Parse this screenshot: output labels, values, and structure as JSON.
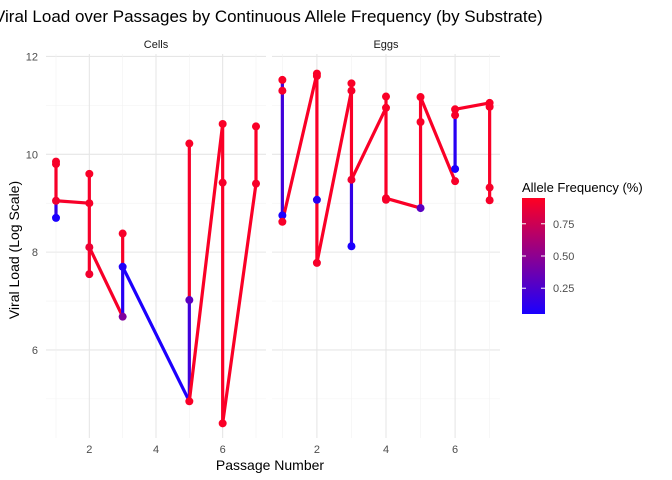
{
  "chart_data": {
    "type": "line",
    "title": "Viral Load over Passages by Continuous Allele Frequency (by Substrate)",
    "xlabel": "Passage Number",
    "ylabel": "Viral Load (Log Scale)",
    "xlim": [
      0.7,
      7.3
    ],
    "ylim": [
      4.2,
      12.05
    ],
    "x_ticks": [
      2,
      4,
      6
    ],
    "y_ticks": [
      6,
      8,
      10,
      12
    ],
    "grid": true,
    "legend": {
      "title": "Allele Frequency (%)",
      "position": "right",
      "ticks": [
        0.25,
        0.5,
        0.75
      ],
      "range": [
        0.05,
        0.95
      ],
      "low_color": "#1a00ff",
      "high_color": "#ff0022"
    },
    "panels": [
      {
        "label": "Cells",
        "points": [
          {
            "x": 1,
            "y": 9.85,
            "freq": 0.92
          },
          {
            "x": 1,
            "y": 9.8,
            "freq": 0.92
          },
          {
            "x": 1,
            "y": 9.05,
            "freq": 0.9
          },
          {
            "x": 1,
            "y": 8.7,
            "freq": 0.05
          },
          {
            "x": 2,
            "y": 9.6,
            "freq": 0.93
          },
          {
            "x": 2,
            "y": 9.0,
            "freq": 0.92
          },
          {
            "x": 2,
            "y": 8.1,
            "freq": 0.88
          },
          {
            "x": 2,
            "y": 7.55,
            "freq": 0.9
          },
          {
            "x": 3,
            "y": 8.38,
            "freq": 0.92
          },
          {
            "x": 3,
            "y": 7.7,
            "freq": 0.08
          },
          {
            "x": 3,
            "y": 6.68,
            "freq": 0.45
          },
          {
            "x": 5,
            "y": 10.22,
            "freq": 0.93
          },
          {
            "x": 5,
            "y": 7.02,
            "freq": 0.3
          },
          {
            "x": 5,
            "y": 4.95,
            "freq": 0.93
          },
          {
            "x": 6,
            "y": 10.62,
            "freq": 0.93
          },
          {
            "x": 6,
            "y": 9.42,
            "freq": 0.92
          },
          {
            "x": 6,
            "y": 4.5,
            "freq": 0.93
          },
          {
            "x": 7,
            "y": 10.57,
            "freq": 0.93
          },
          {
            "x": 7,
            "y": 9.4,
            "freq": 0.92
          }
        ],
        "segments": [
          {
            "x1": 1,
            "y1": 9.85,
            "x2": 1,
            "y2": 9.05,
            "freq": 0.92
          },
          {
            "x1": 1,
            "y1": 9.05,
            "x2": 1,
            "y2": 8.7,
            "freq": 0.15
          },
          {
            "x1": 1,
            "y1": 9.05,
            "x2": 2,
            "y2": 9.0,
            "freq": 0.92
          },
          {
            "x1": 2,
            "y1": 9.6,
            "x2": 2,
            "y2": 7.55,
            "freq": 0.92
          },
          {
            "x1": 2,
            "y1": 8.1,
            "x2": 3,
            "y2": 6.68,
            "freq": 0.92
          },
          {
            "x1": 3,
            "y1": 8.38,
            "x2": 3,
            "y2": 7.7,
            "freq": 0.92
          },
          {
            "x1": 3,
            "y1": 7.7,
            "x2": 3,
            "y2": 6.68,
            "freq": 0.1
          },
          {
            "x1": 3,
            "y1": 7.7,
            "x2": 5,
            "y2": 4.95,
            "freq": 0.06
          },
          {
            "x1": 5,
            "y1": 10.22,
            "x2": 5,
            "y2": 7.02,
            "freq": 0.92
          },
          {
            "x1": 5,
            "y1": 7.02,
            "x2": 5,
            "y2": 4.95,
            "freq": 0.2
          },
          {
            "x1": 5,
            "y1": 4.95,
            "x2": 6,
            "y2": 10.62,
            "freq": 0.93
          },
          {
            "x1": 6,
            "y1": 10.62,
            "x2": 6,
            "y2": 4.5,
            "freq": 0.93
          },
          {
            "x1": 6,
            "y1": 4.5,
            "x2": 7,
            "y2": 9.4,
            "freq": 0.93
          },
          {
            "x1": 7,
            "y1": 10.57,
            "x2": 7,
            "y2": 9.4,
            "freq": 0.93
          }
        ]
      },
      {
        "label": "Eggs",
        "points": [
          {
            "x": 1,
            "y": 11.52,
            "freq": 0.93
          },
          {
            "x": 1,
            "y": 11.3,
            "freq": 0.92
          },
          {
            "x": 1,
            "y": 8.75,
            "freq": 0.05
          },
          {
            "x": 1,
            "y": 8.62,
            "freq": 0.92
          },
          {
            "x": 2,
            "y": 11.65,
            "freq": 0.93
          },
          {
            "x": 2,
            "y": 11.6,
            "freq": 0.93
          },
          {
            "x": 2,
            "y": 9.07,
            "freq": 0.1
          },
          {
            "x": 2,
            "y": 7.78,
            "freq": 0.92
          },
          {
            "x": 3,
            "y": 11.45,
            "freq": 0.93
          },
          {
            "x": 3,
            "y": 11.3,
            "freq": 0.92
          },
          {
            "x": 3,
            "y": 9.48,
            "freq": 0.9
          },
          {
            "x": 3,
            "y": 8.12,
            "freq": 0.05
          },
          {
            "x": 4,
            "y": 11.18,
            "freq": 0.93
          },
          {
            "x": 4,
            "y": 10.95,
            "freq": 0.93
          },
          {
            "x": 4,
            "y": 9.1,
            "freq": 0.92
          },
          {
            "x": 4,
            "y": 9.07,
            "freq": 0.92
          },
          {
            "x": 5,
            "y": 11.17,
            "freq": 0.93
          },
          {
            "x": 5,
            "y": 10.66,
            "freq": 0.93
          },
          {
            "x": 5,
            "y": 8.9,
            "freq": 0.3
          },
          {
            "x": 6,
            "y": 10.92,
            "freq": 0.93
          },
          {
            "x": 6,
            "y": 10.8,
            "freq": 0.92
          },
          {
            "x": 6,
            "y": 9.7,
            "freq": 0.05
          },
          {
            "x": 6,
            "y": 9.45,
            "freq": 0.92
          },
          {
            "x": 7,
            "y": 11.05,
            "freq": 0.93
          },
          {
            "x": 7,
            "y": 10.97,
            "freq": 0.93
          },
          {
            "x": 7,
            "y": 9.32,
            "freq": 0.92
          },
          {
            "x": 7,
            "y": 9.06,
            "freq": 0.92
          }
        ],
        "segments": [
          {
            "x1": 1,
            "y1": 11.52,
            "x2": 1,
            "y2": 8.62,
            "freq": 0.2
          },
          {
            "x1": 1,
            "y1": 8.62,
            "x2": 2,
            "y2": 11.65,
            "freq": 0.93
          },
          {
            "x1": 2,
            "y1": 11.65,
            "x2": 2,
            "y2": 7.78,
            "freq": 0.93
          },
          {
            "x1": 2,
            "y1": 7.78,
            "x2": 3,
            "y2": 11.3,
            "freq": 0.93
          },
          {
            "x1": 3,
            "y1": 11.45,
            "x2": 3,
            "y2": 9.48,
            "freq": 0.93
          },
          {
            "x1": 3,
            "y1": 9.48,
            "x2": 3,
            "y2": 8.12,
            "freq": 0.15
          },
          {
            "x1": 3,
            "y1": 9.48,
            "x2": 4,
            "y2": 10.95,
            "freq": 0.93
          },
          {
            "x1": 4,
            "y1": 11.18,
            "x2": 4,
            "y2": 9.07,
            "freq": 0.93
          },
          {
            "x1": 4,
            "y1": 9.1,
            "x2": 5,
            "y2": 8.9,
            "freq": 0.93
          },
          {
            "x1": 5,
            "y1": 11.17,
            "x2": 5,
            "y2": 8.9,
            "freq": 0.93
          },
          {
            "x1": 5,
            "y1": 11.17,
            "x2": 6,
            "y2": 9.45,
            "freq": 0.93
          },
          {
            "x1": 6,
            "y1": 10.92,
            "x2": 6,
            "y2": 9.7,
            "freq": 0.1
          },
          {
            "x1": 6,
            "y1": 10.92,
            "x2": 7,
            "y2": 11.05,
            "freq": 0.93
          },
          {
            "x1": 7,
            "y1": 11.05,
            "x2": 7,
            "y2": 9.06,
            "freq": 0.93
          }
        ]
      }
    ]
  }
}
